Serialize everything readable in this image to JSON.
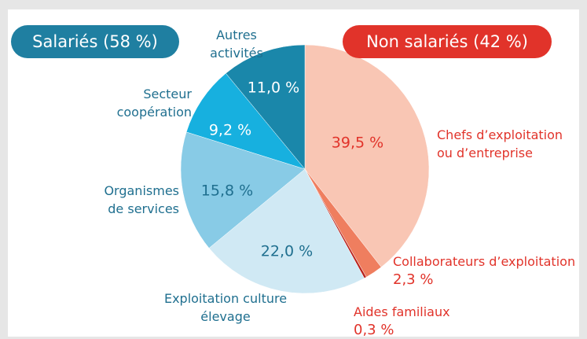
{
  "chart_data": {
    "type": "pie",
    "groups": [
      {
        "label": "Salariés (58 %)",
        "color": "#1f7fa1"
      },
      {
        "label": "Non salariés (42 %)",
        "color": "#e1332a"
      }
    ],
    "categories": [
      "Chefs d’exploitation ou d’entreprise",
      "Collaborateurs d’exploitation",
      "Aides familiaux",
      "Exploitation culture élevage",
      "Organismes de services",
      "Secteur coopération",
      "Autres activités"
    ],
    "values": [
      39.5,
      2.3,
      0.3,
      22.0,
      15.8,
      9.2,
      11.0
    ],
    "value_labels": [
      "39,5 %",
      "2,3 %",
      "0,3 %",
      "22,0 %",
      "15,8 %",
      "9,2 %",
      "11,0 %"
    ],
    "colors": [
      "#f9c6b4",
      "#ef7e5f",
      "#b8231d",
      "#d0e9f4",
      "#88cbe6",
      "#17b0df",
      "#1a87aa"
    ]
  }
}
